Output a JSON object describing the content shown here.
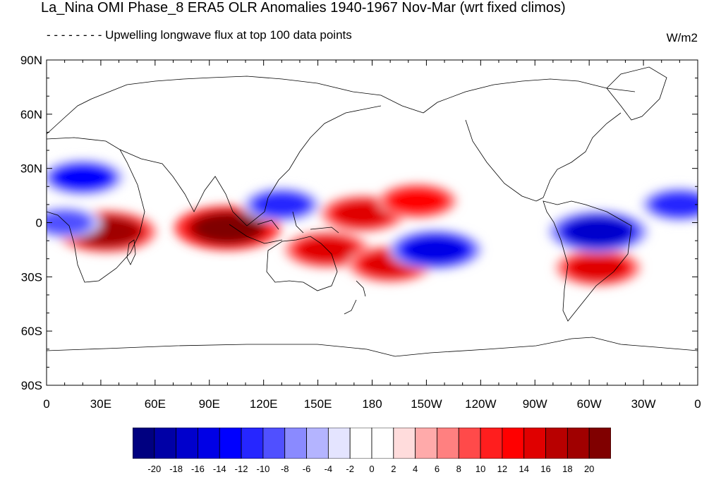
{
  "title": "La_Nina OMI Phase_8 ERA5 OLR Anomalies 1940-1967 Nov-Mar (wrt fixed climos)",
  "subtitle": "- - - - - - - - Upwelling longwave flux at top   100 data points",
  "units": "W/m2",
  "map": {
    "projection": "cylindrical-equidistant",
    "lon_range": [
      0,
      360
    ],
    "lat_range": [
      -90,
      90
    ],
    "lat_labels": [
      "90N",
      "60N",
      "30N",
      "0",
      "30S",
      "60S",
      "90S"
    ],
    "lon_labels": [
      "0",
      "30E",
      "60E",
      "90E",
      "120E",
      "150E",
      "180",
      "150W",
      "120W",
      "90W",
      "60W",
      "30W",
      "0"
    ],
    "anomaly_features": [
      {
        "name": "Indian Ocean / Maritime Continent positive",
        "lon": 100,
        "lat": -3,
        "value": 20
      },
      {
        "name": "East Africa positive",
        "lon": 33,
        "lat": -5,
        "value": 18
      },
      {
        "name": "Central Pacific positive",
        "lon": 175,
        "lat": 5,
        "value": 14
      },
      {
        "name": "NE Pacific positive",
        "lon": 205,
        "lat": 12,
        "value": 12
      },
      {
        "name": "SW Pacific positive",
        "lon": 155,
        "lat": -15,
        "value": 14
      },
      {
        "name": "South Pacific positive",
        "lon": 190,
        "lat": -23,
        "value": 14
      },
      {
        "name": "South America positive",
        "lon": 305,
        "lat": -25,
        "value": 14
      },
      {
        "name": "SPCZ negative",
        "lon": 215,
        "lat": -15,
        "value": -16
      },
      {
        "name": "South America negative",
        "lon": 305,
        "lat": -5,
        "value": -18
      },
      {
        "name": "Subtropical Atlantic/Africa negative",
        "lon": 20,
        "lat": 25,
        "value": -14
      },
      {
        "name": "Philippine Sea negative",
        "lon": 130,
        "lat": 10,
        "value": -12
      },
      {
        "name": "Atlantic ITCZ negative",
        "lon": 350,
        "lat": 10,
        "value": -12
      },
      {
        "name": "West Africa negative",
        "lon": 10,
        "lat": 0,
        "value": -10
      }
    ]
  },
  "colorbar": {
    "levels": [
      "-20",
      "-18",
      "-16",
      "-14",
      "-12",
      "-10",
      "-8",
      "-6",
      "-4",
      "-2",
      "0",
      "2",
      "4",
      "6",
      "8",
      "10",
      "12",
      "14",
      "16",
      "18",
      "20"
    ],
    "colors": [
      "#000080",
      "#0000a6",
      "#0000cc",
      "#0000e6",
      "#0000ff",
      "#2626ff",
      "#5050ff",
      "#8a8aff",
      "#b4b4ff",
      "#e4e4ff",
      "#ffffff",
      "#ffffff",
      "#ffdcdc",
      "#ffaaaa",
      "#ff8080",
      "#ff4a4a",
      "#ff1e1e",
      "#ff0000",
      "#e00000",
      "#b80000",
      "#a00000",
      "#800000"
    ]
  }
}
